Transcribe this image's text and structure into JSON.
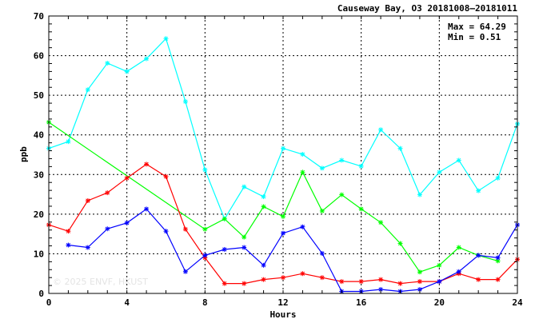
{
  "chart_data": {
    "type": "line",
    "title": "Causeway Bay, O3 20181008–20181011",
    "xlabel": "Hours",
    "ylabel": "ppb",
    "xlim": [
      0,
      24
    ],
    "ylim": [
      0,
      70
    ],
    "xticks": [
      "0",
      "4",
      "8",
      "12",
      "16",
      "20",
      "24"
    ],
    "yticks": [
      "0",
      "10",
      "20",
      "30",
      "40",
      "50",
      "60",
      "70"
    ],
    "grid": true,
    "stats": {
      "max": "Max = 64.29",
      "min": "Min =  0.51"
    },
    "watermark": "© 2025  ENVF, HKUST",
    "series": [
      {
        "color": "#00ffff",
        "x": [
          0,
          1,
          2,
          3,
          4,
          5,
          6,
          7,
          8,
          9,
          10,
          11,
          12,
          13,
          14,
          15,
          16,
          17,
          18,
          19,
          20,
          21,
          22,
          23,
          24
        ],
        "y": [
          36.6,
          38.3,
          51.4,
          58.1,
          56.0,
          59.2,
          64.29,
          48.4,
          31.2,
          18.8,
          26.9,
          24.4,
          36.6,
          35.1,
          31.6,
          33.6,
          32.1,
          41.3,
          36.6,
          24.9,
          30.6,
          33.6,
          25.9,
          29.1,
          42.8
        ]
      },
      {
        "color": "#00ff00",
        "x": [
          0,
          8,
          9,
          10,
          11,
          12,
          13,
          14,
          15,
          16,
          17,
          18,
          19,
          20,
          21,
          22,
          23
        ],
        "y": [
          43.2,
          16.2,
          18.8,
          14.2,
          21.9,
          19.4,
          30.6,
          20.8,
          24.9,
          21.3,
          17.9,
          12.6,
          5.4,
          7.1,
          11.6,
          9.6,
          8.2
        ]
      },
      {
        "color": "#ff0000",
        "x": [
          0,
          1,
          2,
          3,
          4,
          5,
          6,
          7,
          8,
          9,
          10,
          11,
          12,
          13,
          14,
          15,
          16,
          17,
          18,
          19,
          20,
          21,
          22,
          23,
          24
        ],
        "y": [
          17.3,
          15.7,
          23.4,
          25.4,
          29.1,
          32.6,
          29.5,
          16.2,
          9.0,
          2.5,
          2.5,
          3.5,
          4.0,
          5.0,
          4.0,
          3.0,
          3.0,
          3.5,
          2.5,
          3.0,
          3.0,
          5.0,
          3.5,
          3.5,
          8.6
        ]
      },
      {
        "color": "#0000ff",
        "x": [
          1,
          2,
          3,
          4,
          5,
          6,
          7,
          8,
          9,
          10,
          11,
          12,
          13,
          14,
          15,
          16,
          17,
          18,
          19,
          20,
          21,
          22,
          23,
          24
        ],
        "y": [
          12.2,
          11.6,
          16.3,
          17.8,
          21.3,
          15.7,
          5.5,
          9.6,
          11.1,
          11.6,
          7.1,
          15.2,
          16.8,
          10.1,
          0.51,
          0.51,
          1.0,
          0.51,
          1.0,
          3.0,
          5.5,
          9.6,
          9.0,
          17.3
        ]
      }
    ]
  }
}
